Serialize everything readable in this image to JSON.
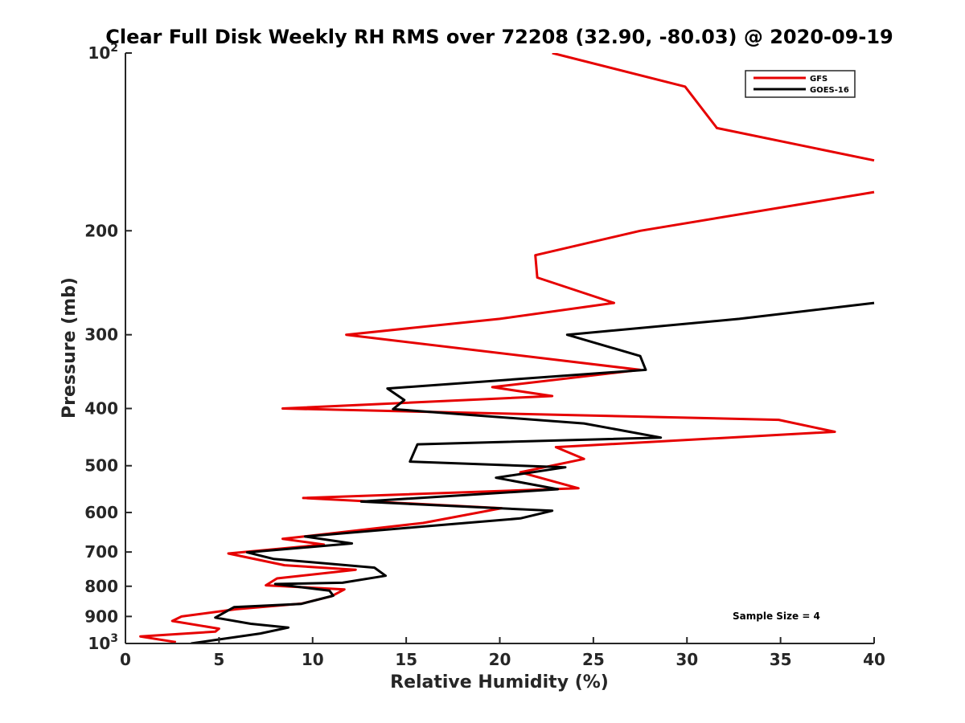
{
  "chart_data": {
    "type": "line",
    "title": "Clear Full Disk Weekly RH RMS over 72208 (32.90, -80.03) @ 2020-09-19",
    "xlabel": "Relative Humidity (%)",
    "ylabel": "Pressure (mb)",
    "xlim": [
      0,
      40
    ],
    "ylim": [
      100,
      1000
    ],
    "y_scale": "log",
    "y_reversed": true,
    "grid": false,
    "legend_position": "top-right",
    "x_ticks": [
      0,
      5,
      10,
      15,
      20,
      25,
      30,
      35,
      40
    ],
    "x_tick_labels": [
      "0",
      "5",
      "10",
      "15",
      "20",
      "25",
      "30",
      "35",
      "40"
    ],
    "y_ticks": [
      {
        "value": 100,
        "base": "10",
        "exp": "2"
      },
      {
        "value": 200,
        "label": "200"
      },
      {
        "value": 300,
        "label": "300"
      },
      {
        "value": 400,
        "label": "400"
      },
      {
        "value": 500,
        "label": "500"
      },
      {
        "value": 600,
        "label": "600"
      },
      {
        "value": 700,
        "label": "700"
      },
      {
        "value": 800,
        "label": "800"
      },
      {
        "value": 900,
        "label": "900"
      },
      {
        "value": 1000,
        "base": "10",
        "exp": "3"
      }
    ],
    "series": [
      {
        "name": "GFS",
        "color": "#e60000",
        "x": [
          22.8,
          29.9,
          31.6,
          40.0,
          null,
          40.0,
          27.5,
          21.9,
          22.0,
          26.1,
          20.0,
          11.8,
          27.5,
          19.6,
          22.8,
          8.4,
          34.9,
          37.9,
          23.0,
          24.5,
          21.1,
          24.2,
          9.5,
          20.1,
          15.9,
          8.4,
          10.6,
          5.5,
          8.5,
          12.3,
          8.1,
          7.5,
          11.7,
          11.0,
          9.4,
          5.9,
          3.0,
          2.5,
          5.0,
          4.8,
          0.8,
          2.7
        ],
        "y": [
          100,
          114,
          134,
          152,
          null,
          172,
          200,
          220,
          240,
          265,
          282,
          300,
          344,
          368,
          381,
          400,
          418,
          438,
          465,
          487,
          513,
          546,
          567,
          590,
          625,
          665,
          680,
          704,
          737,
          750,
          776,
          797,
          810,
          832,
          856,
          875,
          900,
          916,
          944,
          955,
          973,
          995
        ],
        "note": "Red upper segment runs off the right edge of the plot (x > 40) between ~152 and ~172 mb."
      },
      {
        "name": "GOES-16",
        "color": "#000000",
        "x": [
          40.0,
          32.8,
          23.6,
          27.5,
          27.8,
          14.0,
          14.9,
          14.3,
          24.5,
          28.6,
          15.6,
          15.2,
          23.5,
          19.8,
          23.1,
          12.6,
          22.8,
          21.1,
          15.6,
          9.6,
          12.1,
          6.5,
          7.9,
          13.3,
          13.9,
          11.6,
          8.0,
          10.9,
          11.1,
          9.4,
          5.8,
          4.8,
          6.7,
          8.7,
          7.2,
          3.5
        ],
        "y": [
          265,
          282,
          300,
          326,
          344,
          370,
          387,
          401,
          424,
          448,
          460,
          492,
          503,
          524,
          548,
          575,
          596,
          614,
          635,
          659,
          677,
          701,
          719,
          744,
          768,
          789,
          793,
          814,
          830,
          857,
          868,
          904,
          926,
          940,
          962,
          1000
        ]
      }
    ],
    "annotation": "Sample Size = 4"
  }
}
